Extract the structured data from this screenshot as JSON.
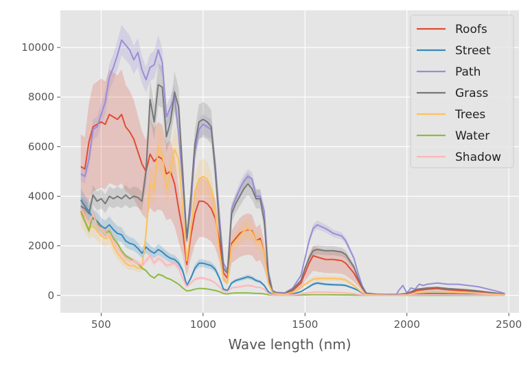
{
  "chart_data": {
    "type": "line",
    "title": "",
    "xlabel": "Wave length (nm)",
    "ylabel": "",
    "xlim": [
      300,
      2550
    ],
    "ylim": [
      -700,
      11500
    ],
    "xticks": [
      500,
      1000,
      1500,
      2000,
      2500
    ],
    "yticks": [
      0,
      2000,
      4000,
      6000,
      8000,
      10000
    ],
    "grid": true,
    "legend_position": "top-right",
    "series": [
      {
        "name": "Roofs",
        "color": "#E24A33",
        "x": [
          400,
          420,
          440,
          460,
          480,
          500,
          520,
          540,
          560,
          580,
          600,
          620,
          640,
          660,
          680,
          700,
          720,
          740,
          760,
          780,
          800,
          820,
          840,
          860,
          880,
          900,
          920,
          940,
          960,
          980,
          1000,
          1020,
          1040,
          1060,
          1080,
          1100,
          1120,
          1140,
          1160,
          1180,
          1200,
          1220,
          1240,
          1260,
          1280,
          1300,
          1320,
          1340,
          1360,
          1400,
          1440,
          1480,
          1500,
          1520,
          1540,
          1560,
          1600,
          1640,
          1680,
          1700,
          1740,
          1760,
          1780,
          1800,
          1850,
          1900,
          1950,
          2000,
          2050,
          2100,
          2150,
          2200,
          2250,
          2300,
          2350,
          2400,
          2450,
          2480
        ],
        "y": [
          5200,
          5100,
          6200,
          6800,
          6900,
          7000,
          6900,
          7300,
          7200,
          7100,
          7300,
          6800,
          6600,
          6300,
          5800,
          5300,
          5000,
          5700,
          5400,
          5600,
          5500,
          4900,
          5000,
          4500,
          3500,
          2600,
          1250,
          2400,
          3300,
          3800,
          3800,
          3700,
          3500,
          3100,
          2200,
          900,
          700,
          2100,
          2300,
          2500,
          2600,
          2650,
          2600,
          2200,
          2300,
          1700,
          700,
          150,
          100,
          80,
          200,
          500,
          900,
          1300,
          1600,
          1550,
          1450,
          1450,
          1400,
          1300,
          900,
          600,
          300,
          80,
          30,
          20,
          20,
          50,
          200,
          250,
          280,
          230,
          200,
          180,
          150,
          120,
          80,
          50
        ]
      },
      {
        "name": "Street",
        "color": "#348ABD",
        "x": [
          400,
          420,
          440,
          460,
          480,
          500,
          520,
          540,
          560,
          580,
          600,
          620,
          640,
          660,
          680,
          700,
          720,
          740,
          760,
          780,
          800,
          820,
          840,
          860,
          880,
          900,
          920,
          940,
          960,
          980,
          1000,
          1020,
          1040,
          1060,
          1080,
          1100,
          1120,
          1140,
          1160,
          1180,
          1200,
          1220,
          1240,
          1260,
          1280,
          1300,
          1320,
          1340,
          1360,
          1400,
          1440,
          1480,
          1500,
          1520,
          1540,
          1560,
          1600,
          1640,
          1680,
          1700,
          1740,
          1760,
          1780,
          1800,
          1850,
          1900,
          1950,
          2000,
          2050,
          2100,
          2150,
          2200,
          2250,
          2300,
          2350,
          2400,
          2450,
          2480
        ],
        "y": [
          3850,
          3600,
          3400,
          3100,
          3000,
          2800,
          2700,
          2850,
          2650,
          2500,
          2450,
          2200,
          2100,
          2050,
          1900,
          1700,
          1950,
          1800,
          1700,
          1850,
          1750,
          1600,
          1500,
          1450,
          1300,
          1000,
          400,
          700,
          1100,
          1300,
          1300,
          1250,
          1200,
          1050,
          700,
          250,
          200,
          500,
          600,
          650,
          700,
          750,
          700,
          600,
          550,
          400,
          150,
          40,
          30,
          30,
          60,
          150,
          250,
          350,
          450,
          500,
          450,
          430,
          420,
          400,
          280,
          200,
          100,
          30,
          10,
          10,
          10,
          20,
          60,
          80,
          80,
          70,
          60,
          50,
          40,
          30,
          20,
          15
        ]
      },
      {
        "name": "Path",
        "color": "#988ED5",
        "x": [
          400,
          420,
          440,
          460,
          480,
          500,
          520,
          540,
          560,
          580,
          600,
          620,
          640,
          660,
          680,
          700,
          720,
          740,
          760,
          780,
          800,
          820,
          840,
          860,
          880,
          900,
          920,
          940,
          960,
          980,
          1000,
          1020,
          1040,
          1060,
          1080,
          1100,
          1120,
          1140,
          1160,
          1180,
          1200,
          1220,
          1240,
          1260,
          1280,
          1300,
          1320,
          1340,
          1360,
          1400,
          1440,
          1480,
          1500,
          1520,
          1540,
          1560,
          1600,
          1640,
          1680,
          1700,
          1740,
          1760,
          1780,
          1800,
          1850,
          1900,
          1950,
          1960,
          1980,
          2000,
          2020,
          2040,
          2060,
          2080,
          2100,
          2150,
          2200,
          2250,
          2300,
          2350,
          2400,
          2450,
          2480
        ],
        "y": [
          4900,
          4800,
          5500,
          6700,
          6800,
          7300,
          7800,
          8800,
          9200,
          9700,
          10300,
          10100,
          9900,
          9500,
          9800,
          9100,
          8700,
          9200,
          9300,
          9900,
          9400,
          7200,
          7600,
          8000,
          6500,
          4500,
          2200,
          3500,
          5800,
          6700,
          6900,
          6800,
          6700,
          5300,
          3200,
          1300,
          1000,
          3500,
          3900,
          4300,
          4600,
          4800,
          4700,
          4000,
          4000,
          3400,
          1000,
          200,
          120,
          100,
          300,
          800,
          1500,
          2200,
          2700,
          2850,
          2700,
          2500,
          2400,
          2200,
          1500,
          900,
          400,
          100,
          50,
          40,
          50,
          200,
          400,
          100,
          300,
          250,
          450,
          400,
          450,
          500,
          450,
          450,
          400,
          350,
          250,
          150,
          80
        ]
      },
      {
        "name": "Grass",
        "color": "#777777",
        "x": [
          400,
          420,
          440,
          460,
          480,
          500,
          520,
          540,
          560,
          580,
          600,
          620,
          640,
          660,
          680,
          700,
          720,
          740,
          760,
          780,
          800,
          820,
          840,
          860,
          880,
          900,
          920,
          940,
          960,
          980,
          1000,
          1020,
          1040,
          1060,
          1080,
          1100,
          1120,
          1140,
          1160,
          1180,
          1200,
          1220,
          1240,
          1260,
          1280,
          1300,
          1320,
          1340,
          1360,
          1400,
          1440,
          1480,
          1500,
          1520,
          1540,
          1560,
          1600,
          1640,
          1680,
          1700,
          1740,
          1760,
          1780,
          1800,
          1850,
          1900,
          1950,
          2000,
          2050,
          2100,
          2150,
          2200,
          2250,
          2300,
          2350,
          2400,
          2450,
          2480
        ],
        "y": [
          3600,
          3500,
          3300,
          4050,
          3800,
          3900,
          3700,
          4000,
          3900,
          4000,
          3900,
          4050,
          3900,
          4000,
          3950,
          3800,
          5000,
          7900,
          7000,
          8500,
          8400,
          6400,
          7000,
          8200,
          7600,
          5000,
          2300,
          4000,
          6100,
          7000,
          7100,
          7000,
          6800,
          5000,
          2800,
          1100,
          900,
          3300,
          3700,
          4000,
          4300,
          4500,
          4300,
          3900,
          3900,
          3000,
          800,
          150,
          100,
          80,
          250,
          600,
          1100,
          1500,
          1800,
          1850,
          1800,
          1800,
          1750,
          1650,
          1150,
          700,
          350,
          80,
          40,
          30,
          30,
          80,
          250,
          300,
          320,
          280,
          250,
          220,
          180,
          130,
          80,
          50
        ]
      },
      {
        "name": "Trees",
        "color": "#FBC15E",
        "x": [
          400,
          420,
          440,
          460,
          480,
          500,
          520,
          540,
          560,
          580,
          600,
          620,
          640,
          660,
          680,
          700,
          720,
          740,
          760,
          780,
          800,
          820,
          840,
          860,
          880,
          900,
          920,
          940,
          960,
          980,
          1000,
          1020,
          1040,
          1060,
          1080,
          1100,
          1120,
          1140,
          1160,
          1180,
          1200,
          1220,
          1240,
          1260,
          1280,
          1300,
          1320,
          1340,
          1360,
          1400,
          1440,
          1480,
          1500,
          1520,
          1540,
          1560,
          1600,
          1640,
          1680,
          1700,
          1740,
          1760,
          1780,
          1800,
          1850,
          1900,
          1950,
          2000,
          2050,
          2100,
          2150,
          2200,
          2250,
          2300,
          2350,
          2400,
          2450,
          2480
        ],
        "y": [
          3300,
          3000,
          2700,
          2800,
          2600,
          2400,
          2300,
          2400,
          2000,
          1700,
          1500,
          1300,
          1200,
          1200,
          1100,
          1100,
          2500,
          4500,
          4300,
          6000,
          5700,
          4300,
          5000,
          5900,
          5500,
          3500,
          1400,
          2700,
          4200,
          4700,
          4800,
          4700,
          4300,
          3300,
          1800,
          650,
          500,
          2000,
          2200,
          2400,
          2600,
          2700,
          2550,
          2200,
          2200,
          1700,
          500,
          100,
          70,
          50,
          120,
          300,
          450,
          550,
          650,
          680,
          680,
          680,
          660,
          620,
          400,
          250,
          120,
          40,
          20,
          10,
          10,
          30,
          100,
          130,
          150,
          130,
          110,
          100,
          80,
          60,
          40,
          30
        ]
      },
      {
        "name": "Water",
        "color": "#8EBA42",
        "x": [
          400,
          420,
          440,
          460,
          480,
          500,
          520,
          540,
          560,
          580,
          600,
          620,
          640,
          660,
          680,
          700,
          720,
          740,
          760,
          780,
          800,
          820,
          840,
          860,
          880,
          900,
          920,
          940,
          960,
          980,
          1000,
          1020,
          1040,
          1060,
          1080,
          1100,
          1120,
          1140,
          1160,
          1180,
          1200,
          1220,
          1240,
          1260,
          1280,
          1300,
          1320,
          1340,
          1360,
          1400,
          1440,
          1480,
          1500,
          1520,
          1540,
          1560,
          1600,
          1640,
          1680,
          1700,
          1740,
          1760,
          1780,
          1800,
          1850,
          1900,
          1950,
          2000,
          2050,
          2100,
          2150,
          2200,
          2250,
          2300,
          2350,
          2400,
          2450,
          2480
        ],
        "y": [
          3400,
          3000,
          2600,
          3300,
          2900,
          2700,
          2500,
          2600,
          2300,
          2100,
          1800,
          1600,
          1500,
          1400,
          1300,
          1100,
          1000,
          800,
          700,
          850,
          800,
          700,
          650,
          550,
          450,
          300,
          180,
          200,
          250,
          280,
          280,
          260,
          230,
          200,
          150,
          80,
          60,
          90,
          100,
          100,
          100,
          100,
          90,
          80,
          80,
          60,
          30,
          15,
          10,
          10,
          10,
          15,
          20,
          25,
          30,
          30,
          28,
          25,
          22,
          20,
          15,
          10,
          8,
          5,
          5,
          5,
          5,
          5,
          5,
          5,
          5,
          5,
          5,
          5,
          5,
          5,
          5,
          5
        ]
      },
      {
        "name": "Shadow",
        "color": "#FFB5B8",
        "x": [
          400,
          420,
          440,
          460,
          480,
          500,
          520,
          540,
          560,
          580,
          600,
          620,
          640,
          660,
          680,
          700,
          720,
          740,
          760,
          780,
          800,
          820,
          840,
          860,
          880,
          900,
          920,
          940,
          960,
          980,
          1000,
          1020,
          1040,
          1060,
          1080,
          1100,
          1120,
          1140,
          1160,
          1180,
          1200,
          1220,
          1240,
          1260,
          1280,
          1300,
          1320,
          1340,
          1360,
          1400,
          1440,
          1480,
          1500,
          1520,
          1540,
          1560,
          1600,
          1640,
          1680,
          1700,
          1740,
          1760,
          1780,
          1800,
          1850,
          1900,
          1950,
          2000,
          2050,
          2100,
          2150,
          2200,
          2250,
          2300,
          2350,
          2400,
          2450,
          2480
        ],
        "y": [
          3500,
          3200,
          2900,
          3300,
          2800,
          2700,
          2500,
          2500,
          2200,
          1900,
          1700,
          1500,
          1400,
          1400,
          1300,
          1200,
          1400,
          1600,
          1300,
          1500,
          1400,
          1200,
          1250,
          1300,
          1100,
          700,
          350,
          500,
          650,
          700,
          700,
          650,
          600,
          500,
          350,
          180,
          150,
          300,
          330,
          350,
          380,
          400,
          380,
          330,
          320,
          250,
          80,
          20,
          15,
          15,
          30,
          60,
          90,
          110,
          130,
          140,
          130,
          120,
          110,
          100,
          70,
          40,
          20,
          8,
          5,
          5,
          5,
          10,
          20,
          25,
          30,
          25,
          20,
          18,
          15,
          12,
          8,
          5
        ]
      }
    ],
    "bands": {
      "Roofs": {
        "lower_factor": 0.62,
        "upper_factor": 1.25
      },
      "Street": {
        "lower_factor": 0.88,
        "upper_factor": 1.12
      },
      "Path": {
        "lower_factor": 0.94,
        "upper_factor": 1.06
      },
      "Grass": {
        "lower_factor": 0.9,
        "upper_factor": 1.1
      },
      "Trees": {
        "lower_factor": 0.85,
        "upper_factor": 1.15
      },
      "Water": {
        "lower_factor": 0.95,
        "upper_factor": 1.05
      },
      "Shadow": {
        "lower_factor": 0.9,
        "upper_factor": 1.1
      }
    }
  }
}
